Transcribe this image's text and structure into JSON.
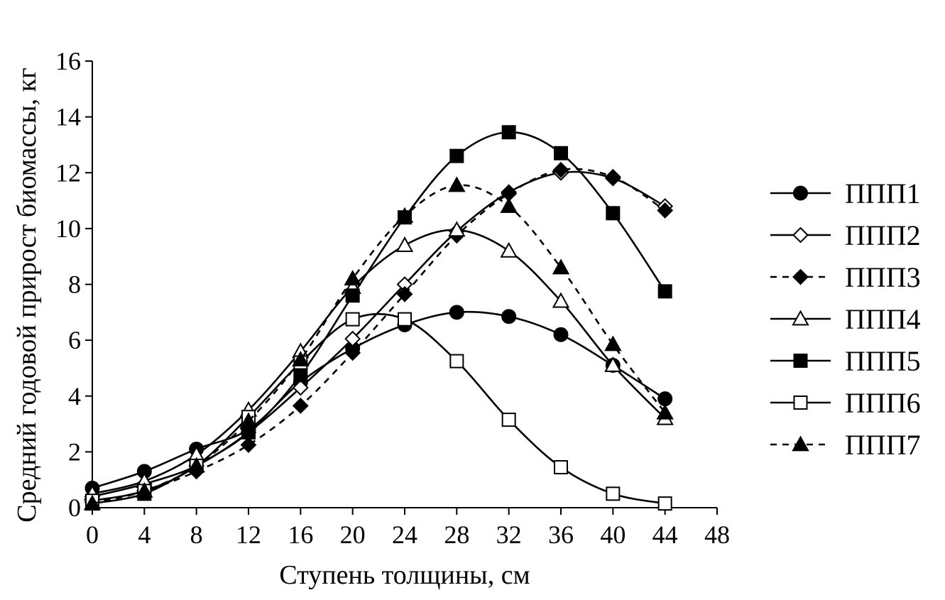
{
  "chart_data": {
    "type": "line",
    "title": "",
    "xlabel": "Ступень толщины, см",
    "ylabel": "Средний годовой прирост биомассы, кг",
    "xlim": [
      0,
      48
    ],
    "ylim": [
      0,
      16
    ],
    "xticks": [
      0,
      4,
      8,
      12,
      16,
      20,
      24,
      28,
      32,
      36,
      40,
      44,
      48
    ],
    "yticks": [
      0,
      2,
      4,
      6,
      8,
      10,
      12,
      14,
      16
    ],
    "grid": false,
    "legend_position": "right",
    "x": [
      0,
      4,
      8,
      12,
      16,
      20,
      24,
      28,
      32,
      36,
      40,
      44
    ],
    "series": [
      {
        "name": "ППП1",
        "marker": "circle-filled",
        "line": "solid",
        "values": [
          0.7,
          1.3,
          2.1,
          2.8,
          4.5,
          5.7,
          6.55,
          7.0,
          6.85,
          6.2,
          5.1,
          3.9
        ]
      },
      {
        "name": "ППП2",
        "marker": "diamond-open",
        "line": "solid",
        "values": [
          0.4,
          0.85,
          1.5,
          2.7,
          4.3,
          6.05,
          8.0,
          9.9,
          11.3,
          12.0,
          11.8,
          10.8
        ]
      },
      {
        "name": "ППП3",
        "marker": "diamond-filled",
        "line": "dashed",
        "values": [
          0.2,
          0.6,
          1.3,
          2.25,
          3.65,
          5.55,
          7.65,
          9.75,
          11.25,
          12.1,
          11.85,
          10.65
        ]
      },
      {
        "name": "ППП4",
        "marker": "triangle-open",
        "line": "solid",
        "values": [
          0.5,
          0.95,
          1.9,
          3.5,
          5.6,
          7.9,
          9.4,
          9.95,
          9.2,
          7.4,
          5.1,
          3.2
        ]
      },
      {
        "name": "ППП5",
        "marker": "square-filled",
        "line": "solid",
        "values": [
          0.15,
          0.5,
          1.5,
          2.7,
          4.75,
          7.6,
          10.4,
          12.6,
          13.45,
          12.7,
          10.55,
          7.75
        ]
      },
      {
        "name": "ППП6",
        "marker": "square-open",
        "line": "solid",
        "values": [
          0.25,
          0.6,
          1.5,
          3.25,
          5.2,
          6.75,
          6.75,
          5.25,
          3.15,
          1.45,
          0.5,
          0.15
        ]
      },
      {
        "name": "ППП7",
        "marker": "triangle-filled",
        "line": "dashed",
        "values": [
          0.15,
          0.6,
          1.5,
          3.1,
          5.3,
          8.2,
          10.45,
          11.55,
          10.8,
          8.6,
          5.85,
          3.4
        ]
      }
    ]
  }
}
